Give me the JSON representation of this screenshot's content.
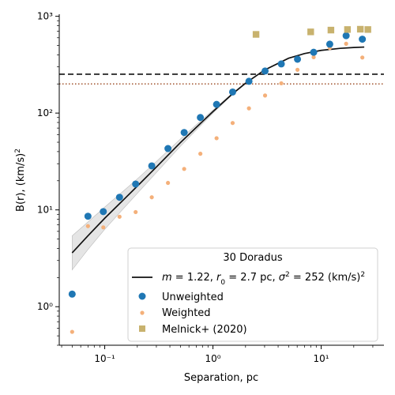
{
  "chart_data": {
    "type": "scatter",
    "xscale": "log",
    "yscale": "log",
    "xlim": [
      0.038,
      38
    ],
    "ylim": [
      0.4,
      1050
    ],
    "xlabel": "Separation, pc",
    "ylabel": "B(r), (km/s)²",
    "x_ticks": [
      {
        "value": 0.1,
        "label": "10⁻¹"
      },
      {
        "value": 1,
        "label": "10⁰"
      },
      {
        "value": 10,
        "label": "10¹"
      }
    ],
    "y_ticks": [
      {
        "value": 1,
        "label": "10⁰"
      },
      {
        "value": 10,
        "label": "10¹"
      },
      {
        "value": 100,
        "label": "10²"
      },
      {
        "value": 1000,
        "label": "10³"
      }
    ],
    "hlines": [
      {
        "y": 252,
        "style": "dashed",
        "color": "#111111"
      },
      {
        "y": 200,
        "style": "dotted",
        "color": "#a0522d"
      }
    ],
    "legend": {
      "title": "30 Doradus",
      "placement": "lower-right",
      "entries": [
        {
          "kind": "line",
          "label": "m = 1.22, r₀ = 2.7 pc, σ² = 252 (km/s)²",
          "label_parts": [
            "m",
            " = 1.22, ",
            "r",
            "0",
            " = 2.7 pc, ",
            "σ",
            "2",
            " = 252 (km/s)",
            "2"
          ]
        },
        {
          "kind": "circle",
          "label": "Unweighted"
        },
        {
          "kind": "small-circle",
          "label": "Weighted"
        },
        {
          "kind": "square",
          "label": "Melnick+ (2020)"
        }
      ]
    },
    "colors": {
      "unweighted": "#1f77b4",
      "weighted": "#f4b07a",
      "melnick": "#c8b26e",
      "model": "#111111",
      "band": "#cccccc"
    },
    "series": [
      {
        "name": "Unweighted",
        "x": [
          0.05,
          0.07,
          0.097,
          0.137,
          0.193,
          0.272,
          0.384,
          0.542,
          0.765,
          1.08,
          1.52,
          2.15,
          3.03,
          4.28,
          6.04,
          8.52,
          12.0,
          17.0,
          24.0
        ],
        "y": [
          1.35,
          8.6,
          9.6,
          13.5,
          18.5,
          28.5,
          43,
          63,
          90,
          123,
          165,
          213,
          272,
          322,
          360,
          425,
          515,
          630,
          580
        ]
      },
      {
        "name": "Weighted",
        "x": [
          0.05,
          0.07,
          0.097,
          0.137,
          0.193,
          0.272,
          0.384,
          0.542,
          0.765,
          1.08,
          1.52,
          2.15,
          3.03,
          4.28,
          6.04,
          8.52,
          12.0,
          17.0,
          24.0
        ],
        "y": [
          0.55,
          6.8,
          6.6,
          8.5,
          9.5,
          13.5,
          19,
          26.5,
          38,
          55,
          79,
          112,
          152,
          203,
          280,
          378,
          470,
          520,
          375
        ]
      },
      {
        "name": "Melnick+ (2020)",
        "x": [
          2.5,
          8.0,
          12.3,
          17.5,
          23.0,
          27.0
        ],
        "y": [
          650,
          690,
          720,
          730,
          735,
          730
        ]
      },
      {
        "name": "m = 1.22, r₀ = 2.7 pc, σ² = 252 (km/s)²",
        "x": [
          0.05,
          0.07,
          0.1,
          0.15,
          0.2,
          0.3,
          0.5,
          0.7,
          1.0,
          1.5,
          2.0,
          3.0,
          5.0,
          7.0,
          10.0,
          15.0,
          20.0,
          25.0
        ],
        "y": [
          3.6,
          5.4,
          8.2,
          12.8,
          17.6,
          27.7,
          49.5,
          71.0,
          103.7,
          156.5,
          203.4,
          278.6,
          368.6,
          411.5,
          444.4,
          466.5,
          475.8,
          480.8
        ]
      }
    ],
    "model_band": {
      "x": [
        0.05,
        0.07,
        0.1,
        0.15,
        0.2,
        0.3,
        0.5,
        0.7,
        1.0,
        1.5,
        2.0,
        3.0
      ],
      "lower": [
        2.4,
        3.9,
        6.3,
        10.4,
        14.8,
        24.3,
        45.4,
        66.8,
        100.0,
        154.0,
        201.5,
        277.5
      ],
      "upper": [
        5.4,
        7.5,
        10.7,
        15.8,
        20.9,
        31.6,
        54.0,
        75.5,
        107.5,
        159.0,
        205.3,
        279.7
      ]
    }
  }
}
